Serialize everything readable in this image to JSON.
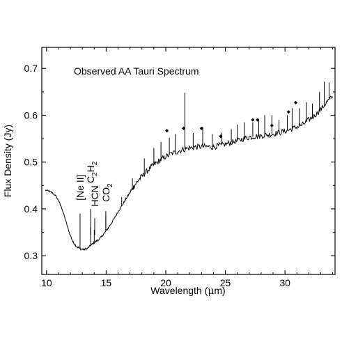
{
  "chart_data": {
    "type": "line",
    "title": "Observed AA Tauri Spectrum",
    "xlabel_prefix": "Wavelength (",
    "xlabel_unit": "μ",
    "xlabel_suffix": "m)",
    "ylabel": "Flux Density (Jy)",
    "xlim": [
      9.6,
      34.2
    ],
    "ylim": [
      0.26,
      0.745
    ],
    "xticks": [
      10,
      15,
      20,
      25,
      30
    ],
    "xtick_labels": [
      "10",
      "15",
      "20",
      "25",
      "30"
    ],
    "yticks": [
      0.3,
      0.4,
      0.5,
      0.6,
      0.7
    ],
    "ytick_labels": [
      "0.3",
      "0.4",
      "0.5",
      "0.6",
      "0.7"
    ],
    "grid": false,
    "series": [
      {
        "x": [
          9.9,
          10.3,
          10.7,
          11.0,
          11.3,
          11.6,
          11.9,
          12.2,
          12.5,
          12.8,
          13.1,
          13.4,
          13.7,
          14.0,
          14.3,
          14.6,
          14.9,
          15.2,
          15.5,
          15.8,
          16.1,
          16.4,
          16.7,
          17.0,
          17.3,
          17.6,
          18.0,
          18.4,
          18.8,
          19.2,
          19.6,
          20.0,
          20.5,
          21.0,
          21.5,
          22.0,
          22.5,
          23.0,
          23.5,
          24.0,
          24.5,
          25.0,
          25.5,
          26.0,
          26.5,
          27.0,
          27.5,
          28.0,
          28.5,
          29.0,
          29.5,
          30.0,
          30.5,
          31.0,
          31.5,
          32.0,
          32.5,
          33.0,
          33.5,
          34.0
        ],
        "y": [
          0.44,
          0.437,
          0.43,
          0.418,
          0.4,
          0.375,
          0.35,
          0.33,
          0.32,
          0.315,
          0.313,
          0.315,
          0.322,
          0.328,
          0.333,
          0.34,
          0.35,
          0.36,
          0.372,
          0.385,
          0.398,
          0.41,
          0.423,
          0.435,
          0.447,
          0.458,
          0.47,
          0.48,
          0.49,
          0.498,
          0.505,
          0.512,
          0.518,
          0.523,
          0.527,
          0.53,
          0.532,
          0.533,
          0.533,
          0.532,
          0.535,
          0.538,
          0.542,
          0.545,
          0.55,
          0.553,
          0.555,
          0.556,
          0.558,
          0.56,
          0.563,
          0.566,
          0.57,
          0.575,
          0.58,
          0.59,
          0.6,
          0.612,
          0.628,
          0.64
        ]
      }
    ],
    "spikes": [
      {
        "x": 12.81,
        "y": 0.34
      },
      {
        "x": 13.7,
        "y": 0.36
      },
      {
        "x": 14.0,
        "y": 0.355
      },
      {
        "x": 14.97,
        "y": 0.385
      },
      {
        "x": 16.3,
        "y": 0.425
      },
      {
        "x": 17.2,
        "y": 0.465
      },
      {
        "x": 18.2,
        "y": 0.508
      },
      {
        "x": 19.0,
        "y": 0.53
      },
      {
        "x": 19.6,
        "y": 0.543
      },
      {
        "x": 20.3,
        "y": 0.552
      },
      {
        "x": 20.8,
        "y": 0.56
      },
      {
        "x": 21.6,
        "y": 0.648
      },
      {
        "x": 22.3,
        "y": 0.562
      },
      {
        "x": 23.1,
        "y": 0.575
      },
      {
        "x": 23.9,
        "y": 0.56
      },
      {
        "x": 24.7,
        "y": 0.563
      },
      {
        "x": 25.5,
        "y": 0.57
      },
      {
        "x": 26.0,
        "y": 0.58
      },
      {
        "x": 26.6,
        "y": 0.585
      },
      {
        "x": 27.3,
        "y": 0.585
      },
      {
        "x": 27.8,
        "y": 0.592
      },
      {
        "x": 28.3,
        "y": 0.6
      },
      {
        "x": 28.9,
        "y": 0.6
      },
      {
        "x": 29.5,
        "y": 0.59
      },
      {
        "x": 30.2,
        "y": 0.6
      },
      {
        "x": 30.6,
        "y": 0.615
      },
      {
        "x": 31.2,
        "y": 0.615
      },
      {
        "x": 31.8,
        "y": 0.628
      },
      {
        "x": 32.3,
        "y": 0.625
      },
      {
        "x": 32.9,
        "y": 0.65
      },
      {
        "x": 33.3,
        "y": 0.672
      },
      {
        "x": 33.7,
        "y": 0.67
      }
    ],
    "markers": [
      {
        "x": 20.1,
        "y": 0.567
      },
      {
        "x": 21.5,
        "y": 0.572
      },
      {
        "x": 23.0,
        "y": 0.572
      },
      {
        "x": 24.6,
        "y": 0.555
      },
      {
        "x": 27.3,
        "y": 0.59
      },
      {
        "x": 27.7,
        "y": 0.59
      },
      {
        "x": 28.9,
        "y": 0.578
      },
      {
        "x": 30.3,
        "y": 0.607
      },
      {
        "x": 30.9,
        "y": 0.627
      }
    ],
    "line_labels": [
      {
        "text_main": "[Ne II]",
        "x": 12.81,
        "y_label": 0.418,
        "y_line_top": 0.39,
        "y_line_bottom": 0.34
      },
      {
        "text_main": "C",
        "text_sub1": "2",
        "text_mid": "H",
        "text_sub2": "2",
        "x": 13.7,
        "y_label": 0.455,
        "y_line_top": 0.4,
        "y_line_bottom": 0.345
      },
      {
        "text_main": "HCN",
        "x": 14.04,
        "y_label": 0.405,
        "y_line_top": 0.38,
        "y_line_bottom": 0.345
      },
      {
        "text_main": "CO",
        "text_sub1": "2",
        "x": 14.97,
        "y_label": 0.415,
        "y_line_top": 0.395,
        "y_line_bottom": 0.36
      }
    ]
  }
}
